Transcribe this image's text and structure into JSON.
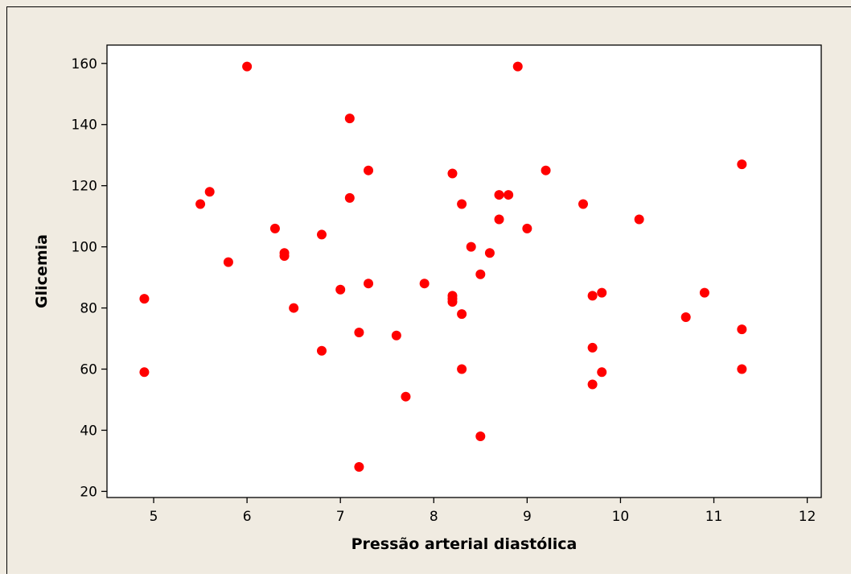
{
  "colors": {
    "figure_background": "#f0ebe1",
    "plot_background": "#ffffff",
    "marker": "#ff0000",
    "axis": "#000000"
  },
  "chart_data": {
    "type": "scatter",
    "title": "",
    "xlabel": "Pressão arterial diastólica",
    "ylabel": "Glicemia",
    "xlim": [
      4.5,
      12.15
    ],
    "ylim": [
      18,
      166
    ],
    "xticks": [
      5,
      6,
      7,
      8,
      9,
      10,
      11,
      12
    ],
    "yticks": [
      20,
      40,
      60,
      80,
      100,
      120,
      140,
      160
    ],
    "grid": false,
    "legend": "none",
    "marker": "filled-circle",
    "series": [
      {
        "points": [
          [
            4.9,
            83
          ],
          [
            4.9,
            59
          ],
          [
            5.5,
            114
          ],
          [
            5.6,
            118
          ],
          [
            5.8,
            95
          ],
          [
            6.0,
            159
          ],
          [
            6.3,
            106
          ],
          [
            6.4,
            98
          ],
          [
            6.4,
            97
          ],
          [
            6.5,
            80
          ],
          [
            6.8,
            104
          ],
          [
            6.8,
            66
          ],
          [
            7.0,
            86
          ],
          [
            7.1,
            142
          ],
          [
            7.1,
            116
          ],
          [
            7.2,
            72
          ],
          [
            7.2,
            28
          ],
          [
            7.3,
            125
          ],
          [
            7.3,
            88
          ],
          [
            7.6,
            71
          ],
          [
            7.7,
            51
          ],
          [
            7.9,
            88
          ],
          [
            8.2,
            124
          ],
          [
            8.2,
            84
          ],
          [
            8.2,
            83
          ],
          [
            8.2,
            82
          ],
          [
            8.3,
            114
          ],
          [
            8.3,
            78
          ],
          [
            8.3,
            60
          ],
          [
            8.4,
            100
          ],
          [
            8.5,
            91
          ],
          [
            8.5,
            38
          ],
          [
            8.6,
            98
          ],
          [
            8.7,
            117
          ],
          [
            8.7,
            109
          ],
          [
            8.8,
            117
          ],
          [
            8.9,
            159
          ],
          [
            9.0,
            106
          ],
          [
            9.2,
            125
          ],
          [
            9.6,
            114
          ],
          [
            9.7,
            84
          ],
          [
            9.7,
            67
          ],
          [
            9.7,
            55
          ],
          [
            9.8,
            85
          ],
          [
            9.8,
            59
          ],
          [
            10.2,
            109
          ],
          [
            10.7,
            77
          ],
          [
            10.9,
            85
          ],
          [
            11.3,
            127
          ],
          [
            11.3,
            73
          ],
          [
            11.3,
            60
          ]
        ]
      }
    ]
  }
}
